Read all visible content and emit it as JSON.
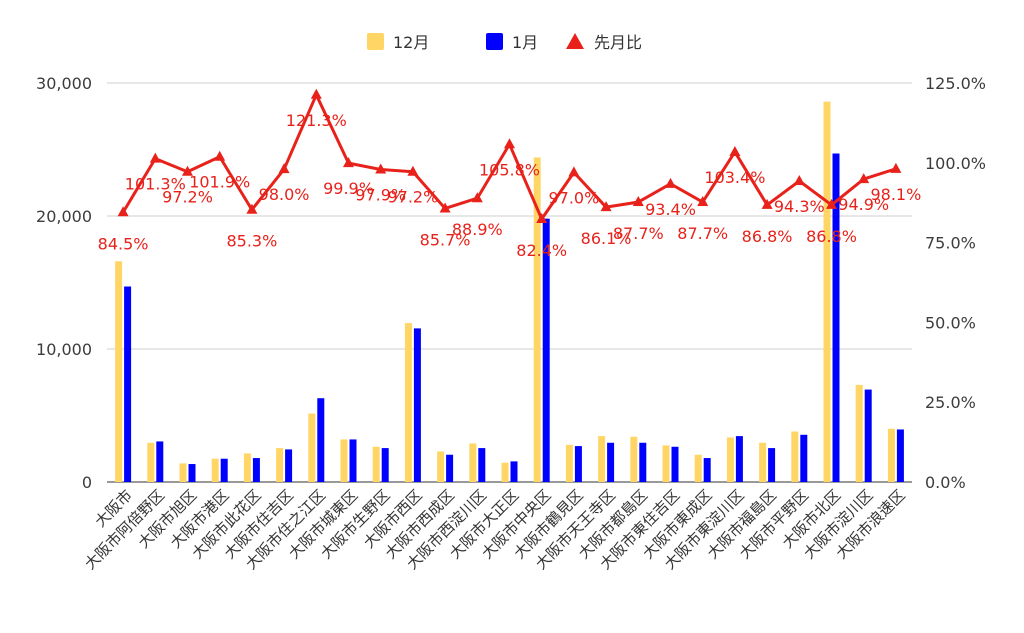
{
  "chart_data": {
    "type": "bar",
    "title": "",
    "xlabel": "",
    "ylabel": "",
    "legend_position": "top",
    "grid": true,
    "ylim": [
      0,
      30000
    ],
    "y2lim": [
      0,
      1.25
    ],
    "y_ticks": [
      "0",
      "10,000",
      "20,000",
      "30,000"
    ],
    "y2_ticks": [
      "0.0%",
      "25.0%",
      "50.0%",
      "75.0%",
      "100.0%",
      "125.0%"
    ],
    "categories": [
      "大阪市",
      "大阪市阿倍野区",
      "大阪市旭区",
      "大阪市港区",
      "大阪市此花区",
      "大阪市住吉区",
      "大阪市住之江区",
      "大阪市城東区",
      "大阪市生野区",
      "大阪市西区",
      "大阪市西成区",
      "大阪市西淀川区",
      "大阪市大正区",
      "大阪市中央区",
      "大阪市鶴見区",
      "大阪市天王寺区",
      "大阪市都島区",
      "大阪市東住吉区",
      "大阪市東成区",
      "大阪市東淀川区",
      "大阪市福島区",
      "大阪市平野区",
      "大阪市北区",
      "大阪市淀川区",
      "大阪市浪速区"
    ],
    "series": [
      {
        "name": "12月",
        "type": "bar",
        "axis": "left",
        "color": "#ffd666",
        "values": [
          16600,
          2950,
          1400,
          1750,
          2150,
          2550,
          5150,
          3200,
          2650,
          11950,
          2300,
          2900,
          1450,
          24400,
          2800,
          3450,
          3400,
          2750,
          2050,
          3350,
          2950,
          3800,
          28600,
          7300,
          4000
        ]
      },
      {
        "name": "1月",
        "type": "bar",
        "axis": "left",
        "color": "#0000ff",
        "values": [
          14700,
          3050,
          1350,
          1750,
          1800,
          2450,
          6300,
          3200,
          2550,
          11550,
          2050,
          2550,
          1550,
          19800,
          2700,
          2950,
          2950,
          2650,
          1800,
          3450,
          2550,
          3550,
          24700,
          6950,
          3950
        ]
      },
      {
        "name": "先月比",
        "type": "line",
        "axis": "right",
        "color": "#e8221b",
        "values": [
          0.845,
          1.013,
          0.972,
          1.019,
          0.853,
          0.98,
          1.213,
          0.999,
          0.979,
          0.972,
          0.857,
          0.889,
          1.058,
          0.824,
          0.97,
          0.861,
          0.877,
          0.934,
          0.877,
          1.034,
          0.868,
          0.943,
          0.868,
          0.949,
          0.981
        ],
        "labels": [
          "84.5%",
          "101.3%",
          "97.2%",
          "101.9%",
          "85.3%",
          "98.0%",
          "121.3%",
          "99.9%",
          "97.9%",
          "97.2%",
          "85.7%",
          "88.9%",
          "105.8%",
          "82.4%",
          "97.0%",
          "86.1%",
          "87.7%",
          "93.4%",
          "87.7%",
          "103.4%",
          "86.8%",
          "94.3%",
          "86.8%",
          "94.9%",
          "98.1%"
        ]
      }
    ]
  }
}
